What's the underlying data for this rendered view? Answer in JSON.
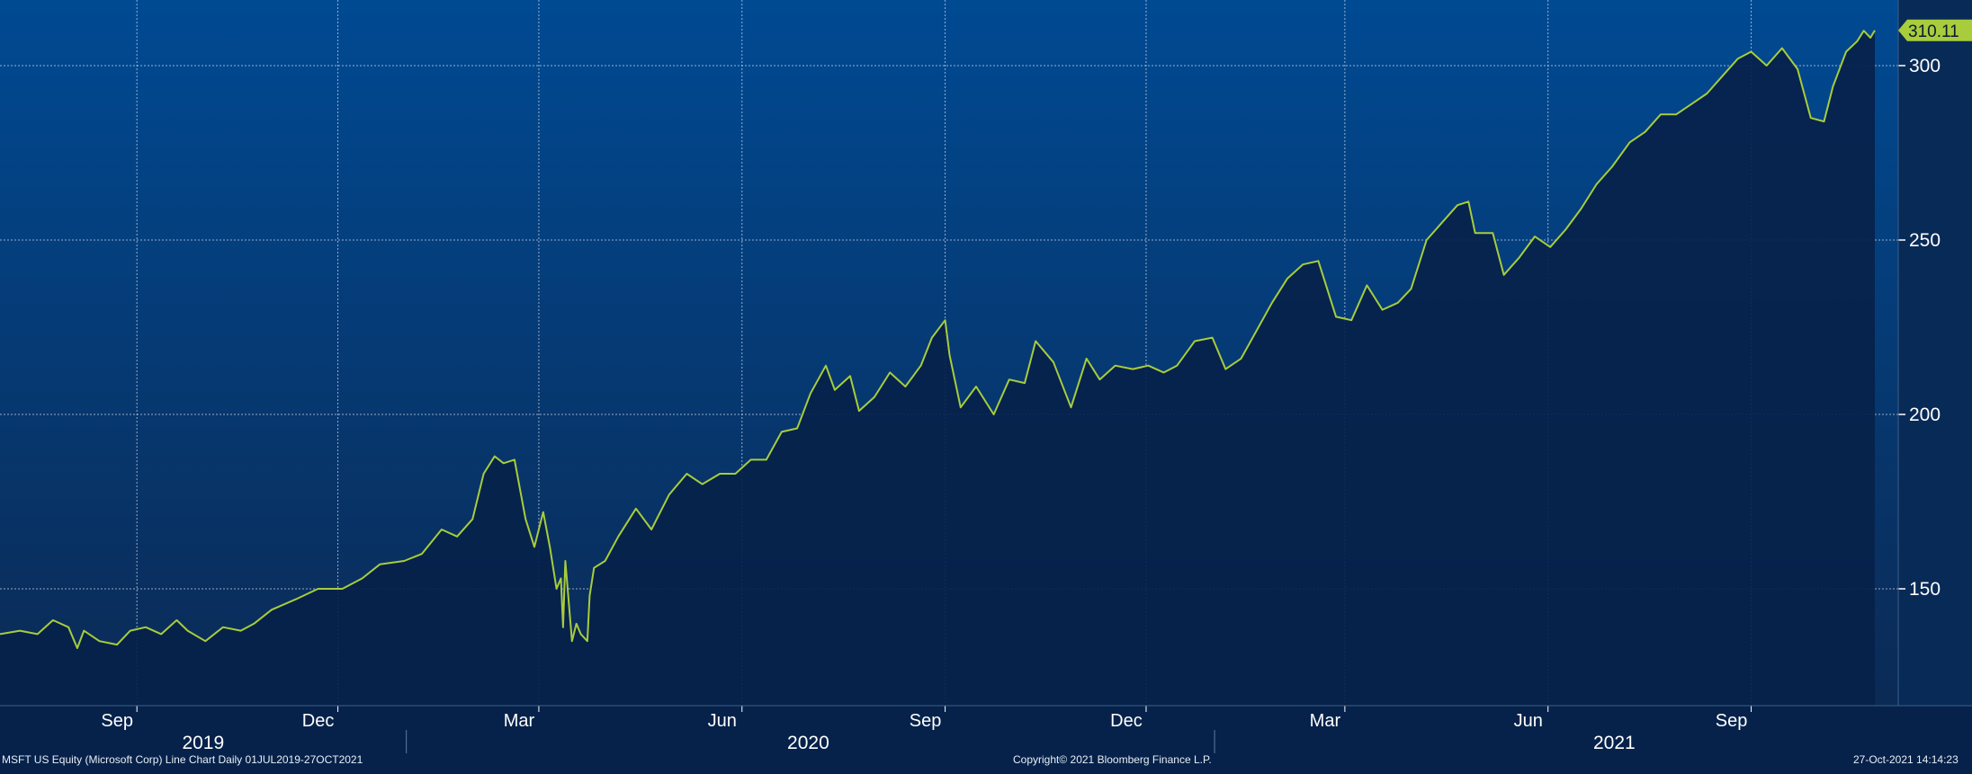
{
  "footer": {
    "left": "MSFT US Equity (Microsoft Corp) Line Chart  Daily 01JUL2019-27OCT2021",
    "center": "Copyright© 2021 Bloomberg Finance L.P.",
    "right": "27-Oct-2021 14:14:23"
  },
  "last_price_label": "310.11",
  "colors": {
    "bg_top": "#004a93",
    "bg_bottom": "#0b2a55",
    "area_fill": "#06224a",
    "line": "#a8cc3c",
    "grid": "#c9d4e4",
    "text": "#ffffff",
    "price_tag": "#a8cc3c"
  },
  "chart_data": {
    "type": "line",
    "title": "",
    "xlabel": "",
    "ylabel": "",
    "x_range": [
      "2019-07-01",
      "2021-10-27"
    ],
    "ylim": [
      115,
      325
    ],
    "y_ticks": [
      150,
      200,
      250,
      300
    ],
    "month_ticks": [
      {
        "date": "2019-09-01",
        "label": "Sep"
      },
      {
        "date": "2019-12-01",
        "label": "Dec"
      },
      {
        "date": "2020-03-01",
        "label": "Mar"
      },
      {
        "date": "2020-06-01",
        "label": "Jun"
      },
      {
        "date": "2020-09-01",
        "label": "Sep"
      },
      {
        "date": "2020-12-01",
        "label": "Dec"
      },
      {
        "date": "2021-03-01",
        "label": "Mar"
      },
      {
        "date": "2021-06-01",
        "label": "Jun"
      },
      {
        "date": "2021-09-01",
        "label": "Sep"
      }
    ],
    "year_ticks": [
      {
        "date": "2019-10-01",
        "label": "2019"
      },
      {
        "date": "2020-07-01",
        "label": "2020"
      },
      {
        "date": "2021-07-01",
        "label": "2021"
      }
    ],
    "year_separators": [
      "2020-01-01",
      "2021-01-01"
    ],
    "grid": true,
    "series": [
      {
        "points": [
          [
            "2019-07-01",
            137
          ],
          [
            "2019-07-10",
            138
          ],
          [
            "2019-07-18",
            137
          ],
          [
            "2019-07-25",
            141
          ],
          [
            "2019-08-01",
            139
          ],
          [
            "2019-08-05",
            133
          ],
          [
            "2019-08-08",
            138
          ],
          [
            "2019-08-15",
            135
          ],
          [
            "2019-08-23",
            134
          ],
          [
            "2019-08-29",
            138
          ],
          [
            "2019-09-05",
            139
          ],
          [
            "2019-09-12",
            137
          ],
          [
            "2019-09-19",
            141
          ],
          [
            "2019-09-24",
            138
          ],
          [
            "2019-10-02",
            135
          ],
          [
            "2019-10-10",
            139
          ],
          [
            "2019-10-18",
            138
          ],
          [
            "2019-10-24",
            140
          ],
          [
            "2019-11-01",
            144
          ],
          [
            "2019-11-12",
            147
          ],
          [
            "2019-11-22",
            150
          ],
          [
            "2019-12-03",
            150
          ],
          [
            "2019-12-12",
            153
          ],
          [
            "2019-12-20",
            157
          ],
          [
            "2019-12-31",
            158
          ],
          [
            "2020-01-08",
            160
          ],
          [
            "2020-01-17",
            167
          ],
          [
            "2020-01-24",
            165
          ],
          [
            "2020-01-31",
            170
          ],
          [
            "2020-02-05",
            183
          ],
          [
            "2020-02-10",
            188
          ],
          [
            "2020-02-14",
            186
          ],
          [
            "2020-02-19",
            187
          ],
          [
            "2020-02-24",
            170
          ],
          [
            "2020-02-28",
            162
          ],
          [
            "2020-03-03",
            172
          ],
          [
            "2020-03-06",
            162
          ],
          [
            "2020-03-09",
            150
          ],
          [
            "2020-03-11",
            153
          ],
          [
            "2020-03-12",
            139
          ],
          [
            "2020-03-13",
            158
          ],
          [
            "2020-03-16",
            135
          ],
          [
            "2020-03-18",
            140
          ],
          [
            "2020-03-20",
            137
          ],
          [
            "2020-03-23",
            135
          ],
          [
            "2020-03-24",
            148
          ],
          [
            "2020-03-26",
            156
          ],
          [
            "2020-03-31",
            158
          ],
          [
            "2020-04-06",
            165
          ],
          [
            "2020-04-14",
            173
          ],
          [
            "2020-04-21",
            167
          ],
          [
            "2020-04-29",
            177
          ],
          [
            "2020-05-07",
            183
          ],
          [
            "2020-05-14",
            180
          ],
          [
            "2020-05-22",
            183
          ],
          [
            "2020-05-29",
            183
          ],
          [
            "2020-06-05",
            187
          ],
          [
            "2020-06-12",
            187
          ],
          [
            "2020-06-19",
            195
          ],
          [
            "2020-06-26",
            196
          ],
          [
            "2020-07-02",
            206
          ],
          [
            "2020-07-09",
            214
          ],
          [
            "2020-07-13",
            207
          ],
          [
            "2020-07-20",
            211
          ],
          [
            "2020-07-24",
            201
          ],
          [
            "2020-07-31",
            205
          ],
          [
            "2020-08-07",
            212
          ],
          [
            "2020-08-14",
            208
          ],
          [
            "2020-08-21",
            214
          ],
          [
            "2020-08-26",
            222
          ],
          [
            "2020-09-01",
            227
          ],
          [
            "2020-09-03",
            217
          ],
          [
            "2020-09-08",
            202
          ],
          [
            "2020-09-15",
            208
          ],
          [
            "2020-09-23",
            200
          ],
          [
            "2020-09-30",
            210
          ],
          [
            "2020-10-07",
            209
          ],
          [
            "2020-10-12",
            221
          ],
          [
            "2020-10-20",
            215
          ],
          [
            "2020-10-28",
            202
          ],
          [
            "2020-11-04",
            216
          ],
          [
            "2020-11-10",
            210
          ],
          [
            "2020-11-17",
            214
          ],
          [
            "2020-11-25",
            213
          ],
          [
            "2020-12-02",
            214
          ],
          [
            "2020-12-09",
            212
          ],
          [
            "2020-12-15",
            214
          ],
          [
            "2020-12-23",
            221
          ],
          [
            "2020-12-31",
            222
          ],
          [
            "2021-01-06",
            213
          ],
          [
            "2021-01-13",
            216
          ],
          [
            "2021-01-20",
            224
          ],
          [
            "2021-01-27",
            232
          ],
          [
            "2021-02-03",
            239
          ],
          [
            "2021-02-10",
            243
          ],
          [
            "2021-02-17",
            244
          ],
          [
            "2021-02-25",
            228
          ],
          [
            "2021-03-04",
            227
          ],
          [
            "2021-03-11",
            237
          ],
          [
            "2021-03-18",
            230
          ],
          [
            "2021-03-25",
            232
          ],
          [
            "2021-03-31",
            236
          ],
          [
            "2021-04-07",
            250
          ],
          [
            "2021-04-14",
            255
          ],
          [
            "2021-04-21",
            260
          ],
          [
            "2021-04-26",
            261
          ],
          [
            "2021-04-29",
            252
          ],
          [
            "2021-05-07",
            252
          ],
          [
            "2021-05-12",
            240
          ],
          [
            "2021-05-19",
            245
          ],
          [
            "2021-05-26",
            251
          ],
          [
            "2021-06-02",
            248
          ],
          [
            "2021-06-09",
            253
          ],
          [
            "2021-06-16",
            259
          ],
          [
            "2021-06-23",
            266
          ],
          [
            "2021-06-30",
            271
          ],
          [
            "2021-07-08",
            278
          ],
          [
            "2021-07-15",
            281
          ],
          [
            "2021-07-22",
            286
          ],
          [
            "2021-07-29",
            286
          ],
          [
            "2021-08-05",
            289
          ],
          [
            "2021-08-12",
            292
          ],
          [
            "2021-08-19",
            297
          ],
          [
            "2021-08-26",
            302
          ],
          [
            "2021-09-01",
            304
          ],
          [
            "2021-09-08",
            300
          ],
          [
            "2021-09-15",
            305
          ],
          [
            "2021-09-22",
            299
          ],
          [
            "2021-09-28",
            285
          ],
          [
            "2021-10-04",
            284
          ],
          [
            "2021-10-08",
            294
          ],
          [
            "2021-10-14",
            304
          ],
          [
            "2021-10-19",
            307
          ],
          [
            "2021-10-22",
            310
          ],
          [
            "2021-10-25",
            308
          ],
          [
            "2021-10-27",
            310.11
          ]
        ]
      }
    ]
  }
}
